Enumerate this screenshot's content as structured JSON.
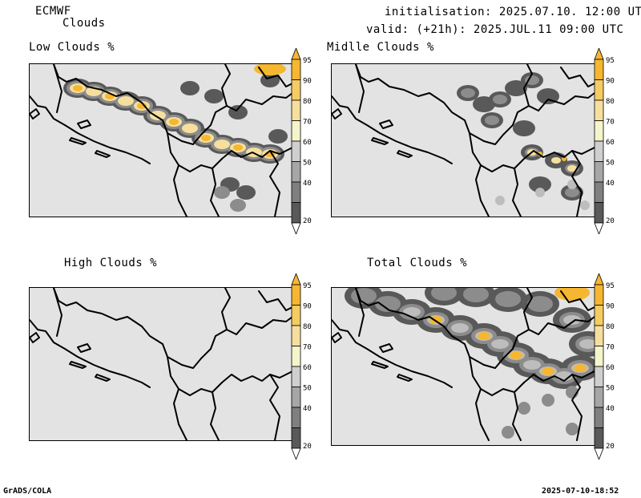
{
  "header": {
    "model": "ECMWF",
    "product": "Clouds",
    "initialisation": "initialisation: 2025.07.10. 12:00 UTC",
    "valid": "valid: (+21h): 2025.JUL.11 09:00 UTC"
  },
  "panels": [
    {
      "title": "Low Clouds %"
    },
    {
      "title": "Midlle Clouds %"
    },
    {
      "title": "High Clouds %"
    },
    {
      "title": "Total Clouds %"
    }
  ],
  "colorbar": {
    "labels": [
      "95",
      "90",
      "80",
      "70",
      "60",
      "50",
      "40",
      "20"
    ],
    "colors": [
      "#f5b731",
      "#f5cc62",
      "#f6df9e",
      "#f5f5cb",
      "#cfcfcf",
      "#a6a6a6",
      "#7f7f7f",
      "#595959"
    ]
  },
  "colors": {
    "land_background": "#e3e3e3",
    "cloud_dark": "#595959",
    "cloud_mid": "#8c8c8c",
    "cloud_light": "#bdbdbd",
    "cloud_yellow": "#f5b731",
    "cloud_pale": "#f6df9e"
  },
  "footer": {
    "left": "GrADS/COLA",
    "right": "2025-07-10-18:52"
  }
}
